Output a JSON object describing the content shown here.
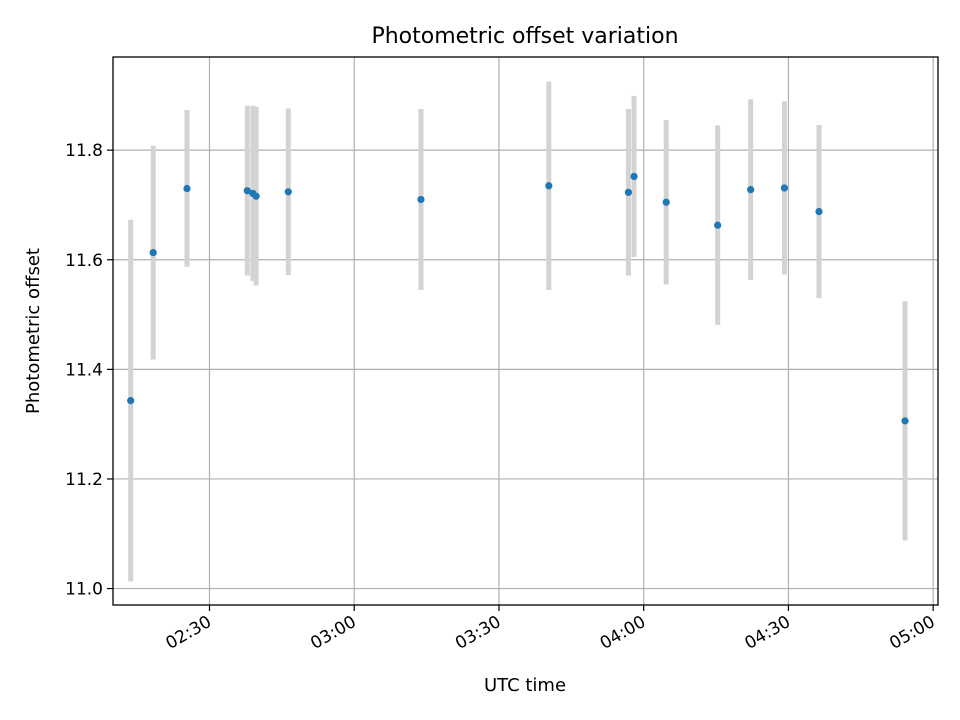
{
  "chart_data": {
    "type": "scatter",
    "title": "Photometric offset variation",
    "xlabel": "UTC time",
    "ylabel": "Photometric offset",
    "grid": true,
    "xlim": [
      "02:10",
      "05:01"
    ],
    "ylim": [
      10.97,
      11.97
    ],
    "x_ticks": [
      "02:30",
      "03:00",
      "03:30",
      "04:00",
      "04:30",
      "05:00"
    ],
    "y_ticks": [
      "11.0",
      "11.2",
      "11.4",
      "11.6",
      "11.8"
    ],
    "colors": {
      "points": "#1f77b4",
      "errorbars": "#d3d3d3",
      "grid": "#b0b0b0"
    },
    "points": [
      {
        "time": "02:13:40",
        "y": 11.343,
        "yerr": 0.33
      },
      {
        "time": "02:18:20",
        "y": 11.613,
        "yerr": 0.195
      },
      {
        "time": "02:25:20",
        "y": 11.73,
        "yerr": 0.143
      },
      {
        "time": "02:37:50",
        "y": 11.726,
        "yerr": 0.155
      },
      {
        "time": "02:39:00",
        "y": 11.721,
        "yerr": 0.16
      },
      {
        "time": "02:39:40",
        "y": 11.716,
        "yerr": 0.163
      },
      {
        "time": "02:46:20",
        "y": 11.724,
        "yerr": 0.152
      },
      {
        "time": "03:13:50",
        "y": 11.71,
        "yerr": 0.165
      },
      {
        "time": "03:40:20",
        "y": 11.735,
        "yerr": 0.19
      },
      {
        "time": "03:56:50",
        "y": 11.723,
        "yerr": 0.152
      },
      {
        "time": "03:58:00",
        "y": 11.752,
        "yerr": 0.147
      },
      {
        "time": "04:04:40",
        "y": 11.705,
        "yerr": 0.15
      },
      {
        "time": "04:15:20",
        "y": 11.663,
        "yerr": 0.182
      },
      {
        "time": "04:22:10",
        "y": 11.728,
        "yerr": 0.165
      },
      {
        "time": "04:29:10",
        "y": 11.731,
        "yerr": 0.158
      },
      {
        "time": "04:36:20",
        "y": 11.688,
        "yerr": 0.158
      },
      {
        "time": "04:54:10",
        "y": 11.306,
        "yerr": 0.218
      }
    ]
  }
}
